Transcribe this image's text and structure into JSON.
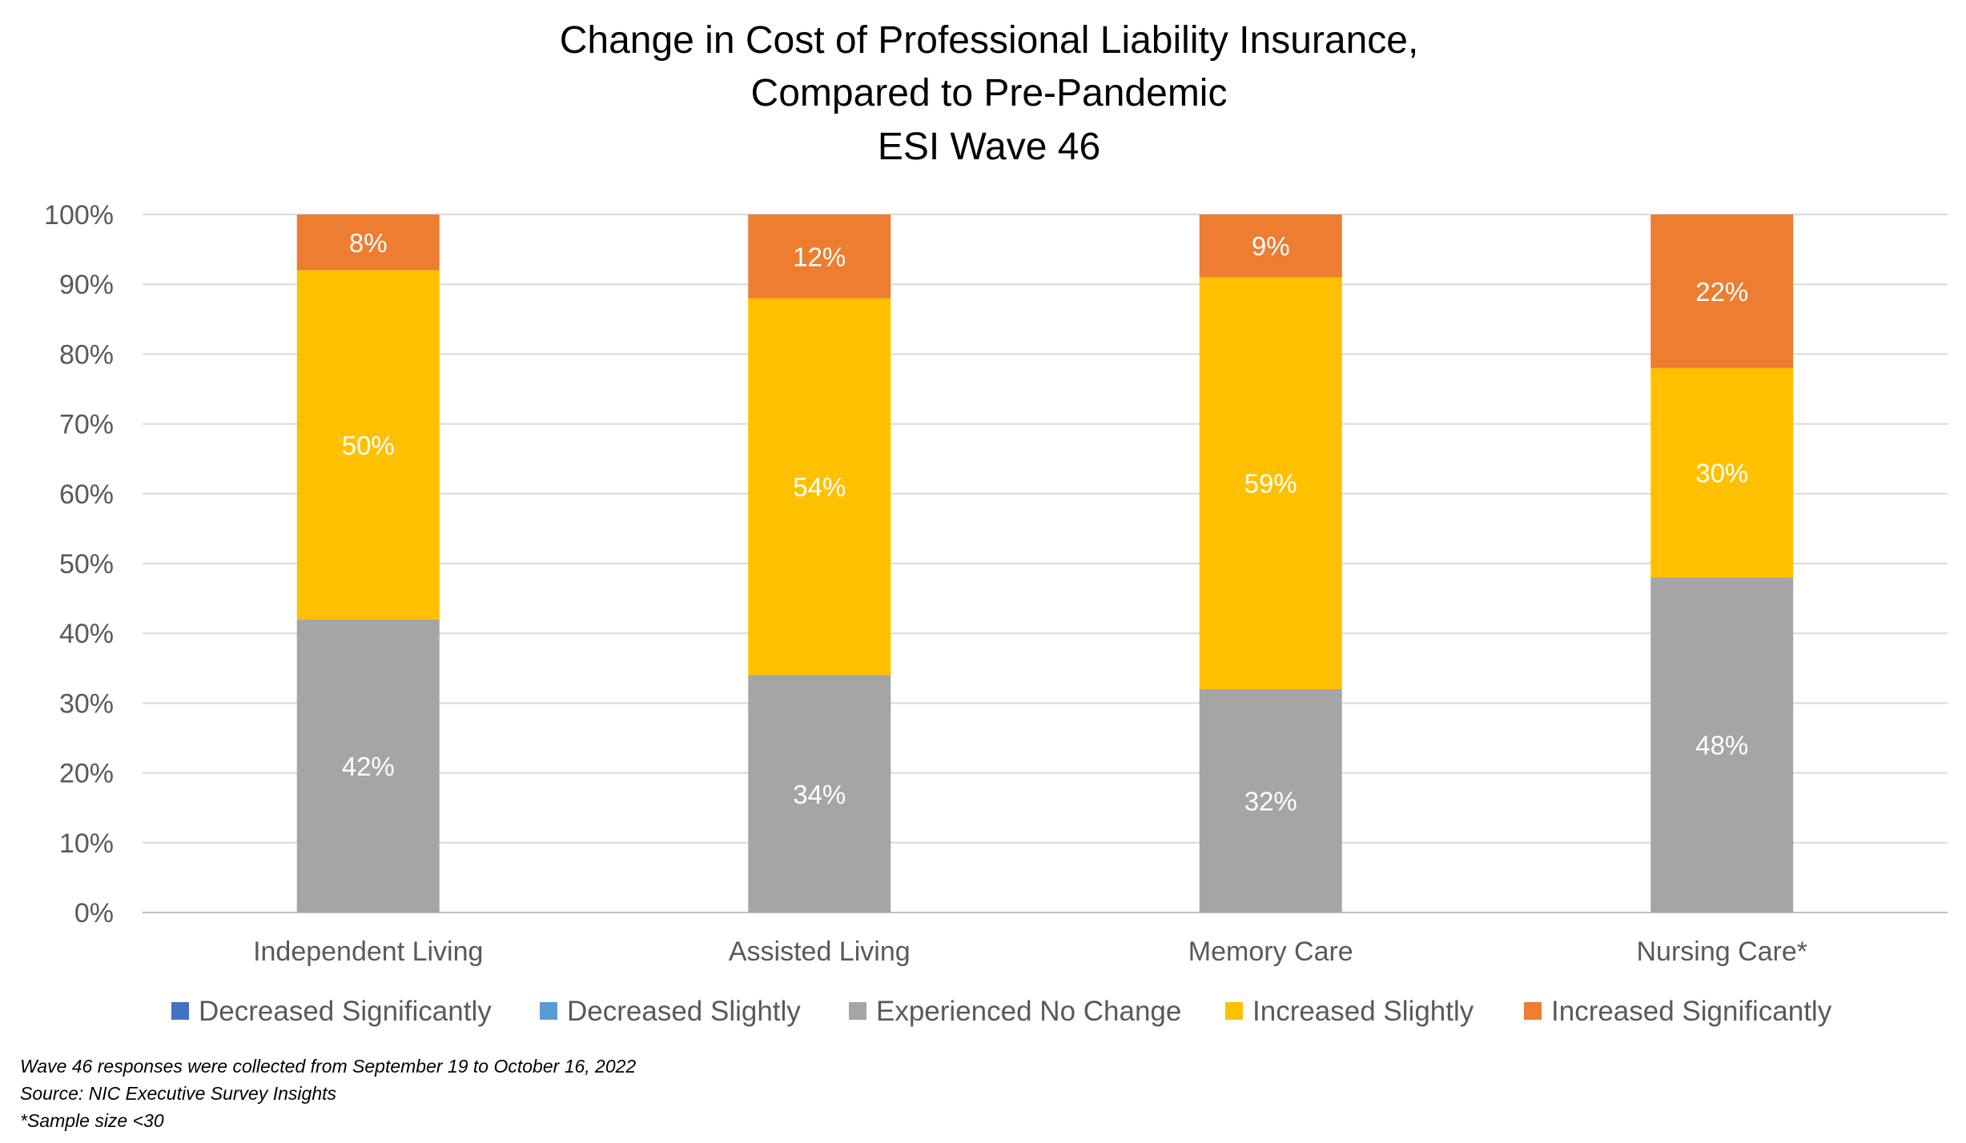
{
  "chart_data": {
    "type": "bar",
    "stacked": true,
    "title": [
      "Change in Cost of Professional Liability Insurance,",
      "Compared to Pre-Pandemic",
      "ESI Wave 46"
    ],
    "categories": [
      "Independent Living",
      "Assisted Living",
      "Memory Care",
      "Nursing Care*"
    ],
    "series": [
      {
        "name": "Decreased Significantly",
        "color": "#4472C4",
        "values": [
          0,
          0,
          0,
          0
        ]
      },
      {
        "name": "Decreased Slightly",
        "color": "#5B9BD5",
        "values": [
          0,
          0,
          0,
          0
        ]
      },
      {
        "name": "Experienced No Change",
        "color": "#A5A5A5",
        "values": [
          42,
          34,
          32,
          48
        ]
      },
      {
        "name": "Increased Slightly",
        "color": "#FFC000",
        "values": [
          50,
          54,
          59,
          30
        ]
      },
      {
        "name": "Increased Significantly",
        "color": "#ED7D31",
        "values": [
          8,
          12,
          9,
          22
        ]
      }
    ],
    "ylim": [
      0,
      100
    ],
    "yticks": [
      0,
      10,
      20,
      30,
      40,
      50,
      60,
      70,
      80,
      90,
      100
    ],
    "ytick_labels": [
      "0%",
      "10%",
      "20%",
      "30%",
      "40%",
      "50%",
      "60%",
      "70%",
      "80%",
      "90%",
      "100%"
    ],
    "xlabel": "",
    "ylabel": "",
    "grid": true,
    "legend_position": "bottom"
  },
  "notes": [
    "Wave 46 responses were collected from September 19 to October 16, 2022",
    "Source: NIC Executive Survey Insights",
    "*Sample size <30"
  ]
}
